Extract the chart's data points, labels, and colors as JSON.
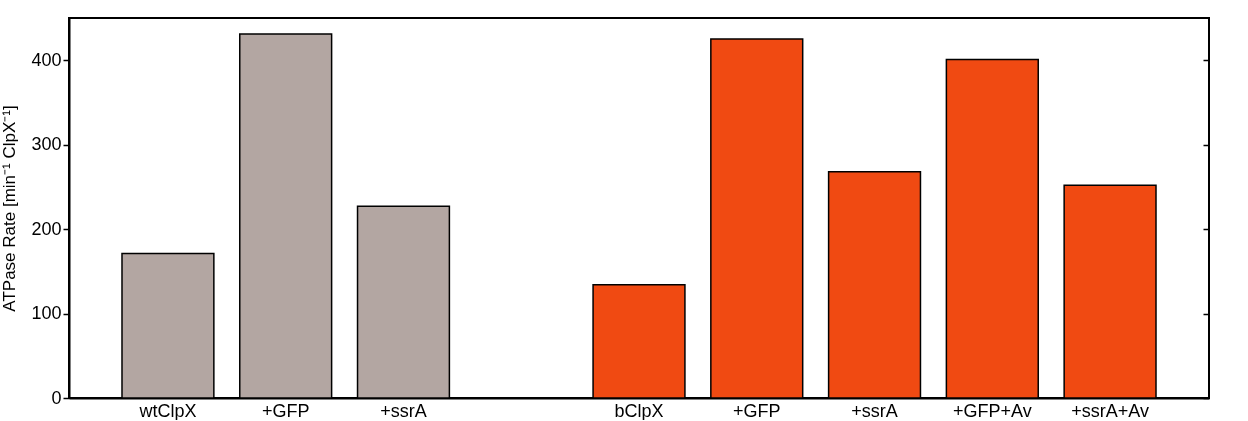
{
  "chart_data": {
    "type": "bar",
    "ylabel": "ATPase Rate [min⁻¹ ClpX⁻¹]",
    "categories": [
      "wtClpX",
      "+GFP",
      "+ssrA",
      null,
      "bClpX",
      "+GFP",
      "+ssrA",
      "+GFP+Av",
      "+ssrA+Av"
    ],
    "values": [
      171,
      431,
      227,
      null,
      134,
      425,
      268,
      401,
      252
    ],
    "colors": [
      "#b3a6a2",
      "#b3a6a2",
      "#b3a6a2",
      "#b3a6a2",
      "#f04a12",
      "#f04a12",
      "#f04a12",
      "#f04a12",
      "#f04a12"
    ],
    "ylim": [
      0,
      450
    ],
    "yticks": [
      0,
      100,
      200,
      300,
      400
    ],
    "grid": false
  }
}
